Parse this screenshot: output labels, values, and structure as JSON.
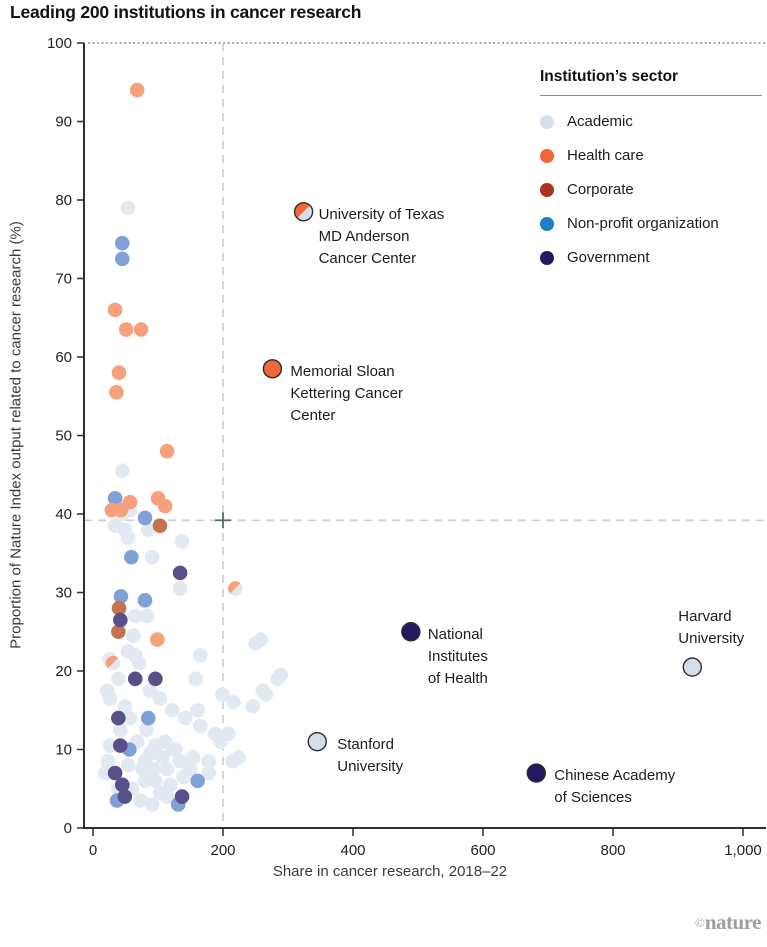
{
  "watermark": {
    "copyright": "©",
    "brand": "nature"
  },
  "legend": {
    "title": "Institution’s sector",
    "items": [
      {
        "id": "academic",
        "label": "Academic"
      },
      {
        "id": "health",
        "label": "Health care"
      },
      {
        "id": "corporate",
        "label": "Corporate"
      },
      {
        "id": "nonprofit",
        "label": "Non-profit organization"
      },
      {
        "id": "government",
        "label": "Government"
      }
    ]
  },
  "chart_data": {
    "type": "scatter",
    "title": "Leading 200 institutions in cancer research",
    "xlabel": "Share in cancer research, 2018–22",
    "ylabel": "Proportion of Nature Index output related to cancer research (%)",
    "xlim": [
      0,
      1040
    ],
    "ylim": [
      0,
      100
    ],
    "x_ticks": [
      {
        "v": 0,
        "label": "0"
      },
      {
        "v": 200,
        "label": "200"
      },
      {
        "v": 400,
        "label": "400"
      },
      {
        "v": 600,
        "label": "600"
      },
      {
        "v": 800,
        "label": "800"
      },
      {
        "v": 1000,
        "label": "1,000"
      }
    ],
    "y_ticks": [
      {
        "v": 0,
        "label": "0"
      },
      {
        "v": 10,
        "label": "10"
      },
      {
        "v": 20,
        "label": "20"
      },
      {
        "v": 30,
        "label": "30"
      },
      {
        "v": 40,
        "label": "40"
      },
      {
        "v": 50,
        "label": "50"
      },
      {
        "v": 60,
        "label": "60"
      },
      {
        "v": 70,
        "label": "70"
      },
      {
        "v": 80,
        "label": "80"
      },
      {
        "v": 90,
        "label": "90"
      },
      {
        "v": 100,
        "label": "100"
      }
    ],
    "grid": false,
    "legend_position": "top-right",
    "reference_lines": {
      "top_dotted_y": 100,
      "vertical_dashed_x": 200,
      "horizontal_dashed_y": 39.2,
      "cross_marker": {
        "x": 200,
        "y": 39.2
      }
    },
    "sector_colors": {
      "academic": {
        "full": "#d6dfe9",
        "muted": "#e3e9f1"
      },
      "health": {
        "full": "#f2683a",
        "muted": "#f7a07c"
      },
      "corporate": {
        "full": "#ac3122",
        "muted": "#c3734e"
      },
      "nonprofit": {
        "full": "#1d80c3",
        "muted": "#80a0d6"
      },
      "government": {
        "full": "#241861",
        "muted": "#595089"
      },
      "labeled_outline": "#2b2b2b"
    },
    "point_key": {
      "a": "academic",
      "h": "health",
      "c": "corporate",
      "n": "nonprofit",
      "g": "government",
      "s": "health+academic split"
    },
    "labeled_points": [
      {
        "id": "md-anderson",
        "label": "University of Texas\nMD Anderson\nCancer Center",
        "x": 324,
        "y": 78.5,
        "sector": "health",
        "split_with": "academic",
        "label_position": "right"
      },
      {
        "id": "msk",
        "label": "Memorial Sloan\nKettering Cancer\nCenter",
        "x": 276,
        "y": 58.5,
        "sector": "health",
        "label_position": "right"
      },
      {
        "id": "nih",
        "label": "National\nInstitutes\nof Health",
        "x": 489,
        "y": 25,
        "sector": "government",
        "label_position": "right"
      },
      {
        "id": "harvard",
        "label": "Harvard\nUniversity",
        "x": 922,
        "y": 20.5,
        "sector": "academic",
        "label_position": "above"
      },
      {
        "id": "stanford",
        "label": "Stanford\nUniversity",
        "x": 345,
        "y": 11,
        "sector": "academic",
        "label_position": "right"
      },
      {
        "id": "cas",
        "label": "Chinese Academy\nof Sciences",
        "x": 682,
        "y": 7,
        "sector": "government",
        "label_position": "right"
      }
    ],
    "points": [
      [
        54,
        79,
        "a"
      ],
      [
        45,
        45.5,
        "a"
      ],
      [
        34,
        38.5,
        "a"
      ],
      [
        49,
        38,
        "a"
      ],
      [
        85,
        38,
        "a"
      ],
      [
        54,
        37,
        "a"
      ],
      [
        137,
        36.5,
        "a"
      ],
      [
        91,
        34.5,
        "a"
      ],
      [
        134,
        30.5,
        "a"
      ],
      [
        83,
        27,
        "a"
      ],
      [
        65,
        27,
        "a"
      ],
      [
        62,
        24.5,
        "a"
      ],
      [
        54,
        22.5,
        "a"
      ],
      [
        71,
        21,
        "a"
      ],
      [
        165,
        22,
        "a"
      ],
      [
        258,
        24,
        "a"
      ],
      [
        250,
        23.5,
        "a"
      ],
      [
        158,
        19,
        "a"
      ],
      [
        199,
        17,
        "a"
      ],
      [
        216,
        16,
        "a"
      ],
      [
        246,
        15.5,
        "a"
      ],
      [
        266,
        17,
        "a"
      ],
      [
        284,
        19,
        "a"
      ],
      [
        289,
        19.5,
        "a"
      ],
      [
        161,
        15,
        "a"
      ],
      [
        261,
        17.5,
        "a"
      ],
      [
        196,
        11,
        "a"
      ],
      [
        68,
        11,
        "a"
      ],
      [
        111,
        11,
        "a"
      ],
      [
        127,
        10,
        "a"
      ],
      [
        154,
        9,
        "a"
      ],
      [
        178,
        8.5,
        "a"
      ],
      [
        80,
        8.5,
        "a"
      ],
      [
        93,
        7.5,
        "a"
      ],
      [
        114,
        7.5,
        "a"
      ],
      [
        139,
        6.5,
        "a"
      ],
      [
        103,
        4.5,
        "a"
      ],
      [
        80,
        6,
        "a"
      ],
      [
        60,
        5,
        "a"
      ],
      [
        114,
        4,
        "a"
      ],
      [
        150,
        7.5,
        "a"
      ],
      [
        178,
        7,
        "a"
      ],
      [
        26,
        16.5,
        "a"
      ],
      [
        49,
        15.5,
        "a"
      ],
      [
        65,
        22,
        "a"
      ],
      [
        39,
        19,
        "a"
      ],
      [
        88,
        17.5,
        "a"
      ],
      [
        103,
        16.5,
        "a"
      ],
      [
        122,
        15,
        "a"
      ],
      [
        142,
        14,
        "a"
      ],
      [
        165,
        13,
        "a"
      ],
      [
        188,
        12,
        "a"
      ],
      [
        208,
        12,
        "a"
      ],
      [
        215,
        8.5,
        "a"
      ],
      [
        224,
        9,
        "a"
      ],
      [
        82,
        12.5,
        "a"
      ],
      [
        57,
        14,
        "a"
      ],
      [
        42,
        12.5,
        "a"
      ],
      [
        26,
        10.5,
        "a"
      ],
      [
        23,
        8.5,
        "a"
      ],
      [
        39,
        5,
        "a"
      ],
      [
        19,
        7,
        "a"
      ],
      [
        45,
        40,
        "a"
      ],
      [
        57,
        40.5,
        "a"
      ],
      [
        39,
        41,
        "a"
      ],
      [
        96,
        10.5,
        "a"
      ],
      [
        88,
        9.5,
        "a"
      ],
      [
        107,
        9,
        "a"
      ],
      [
        122,
        10,
        "a"
      ],
      [
        134,
        8.5,
        "a"
      ],
      [
        76,
        7.5,
        "a"
      ],
      [
        96,
        6,
        "a"
      ],
      [
        119,
        5.5,
        "a"
      ],
      [
        54,
        8,
        "a"
      ],
      [
        73,
        3.5,
        "a"
      ],
      [
        91,
        3,
        "a"
      ],
      [
        26,
        21.5,
        "a"
      ],
      [
        22,
        17.5,
        "a"
      ],
      [
        68,
        94,
        "h"
      ],
      [
        34,
        66,
        "h"
      ],
      [
        51,
        63.5,
        "h"
      ],
      [
        74,
        63.5,
        "h"
      ],
      [
        40,
        58,
        "h"
      ],
      [
        36,
        55.5,
        "h"
      ],
      [
        114,
        48,
        "h"
      ],
      [
        57,
        41.5,
        "h"
      ],
      [
        43,
        40.5,
        "h"
      ],
      [
        29,
        40.5,
        "h"
      ],
      [
        100,
        42,
        "h"
      ],
      [
        111,
        41,
        "h"
      ],
      [
        99,
        24,
        "h"
      ],
      [
        103,
        38.5,
        "c"
      ],
      [
        40,
        28,
        "c"
      ],
      [
        39,
        25,
        "c"
      ],
      [
        45,
        74.5,
        "n"
      ],
      [
        45,
        72.5,
        "n"
      ],
      [
        34,
        42,
        "n"
      ],
      [
        80,
        39.5,
        "n"
      ],
      [
        59,
        34.5,
        "n"
      ],
      [
        43,
        29.5,
        "n"
      ],
      [
        80,
        29,
        "n"
      ],
      [
        85,
        14,
        "n"
      ],
      [
        56,
        10,
        "n"
      ],
      [
        161,
        6,
        "n"
      ],
      [
        131,
        3,
        "n"
      ],
      [
        37,
        3.5,
        "n"
      ],
      [
        134,
        32.5,
        "g"
      ],
      [
        42,
        26.5,
        "g"
      ],
      [
        65,
        19,
        "g"
      ],
      [
        96,
        19,
        "g"
      ],
      [
        39,
        14,
        "g"
      ],
      [
        42,
        10.5,
        "g"
      ],
      [
        34,
        7,
        "g"
      ],
      [
        45,
        5.5,
        "g"
      ],
      [
        49,
        4,
        "g"
      ],
      [
        137,
        4,
        "g"
      ],
      [
        219,
        30.5,
        "s"
      ],
      [
        31,
        21,
        "s"
      ]
    ]
  }
}
